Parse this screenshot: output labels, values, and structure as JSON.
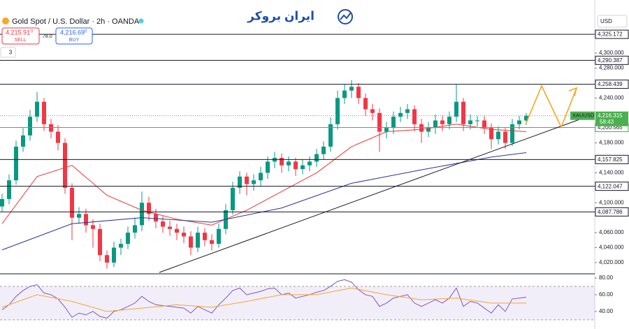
{
  "header": {
    "title": "Gold Spot / U.S. Dollar · 2h · OANDA",
    "sell_price": "4,215.91",
    "sell_sup": "0",
    "sell_label": "SELL",
    "spread": "78.0",
    "buy_price": "4,216.69",
    "buy_sup": "0",
    "buy_label": "BUY",
    "interval": "3",
    "logo": "ایران بروکر",
    "currency": "USD"
  },
  "chart_data": [
    {
      "type": "candlestick",
      "symbol": "XAUUSD",
      "up_color": "#089981",
      "down_color": "#f23645",
      "grid": false,
      "ylim": [
        4005,
        4329
      ],
      "yticks": [
        {
          "value": 4020,
          "label": "4,020.000"
        },
        {
          "value": 4040,
          "label": "4,040.000"
        },
        {
          "value": 4060,
          "label": "4,060.000"
        },
        {
          "value": 4100,
          "label": "4,100.000"
        },
        {
          "value": 4140,
          "label": "4,140.000"
        },
        {
          "value": 4180,
          "label": "4,180.000"
        },
        {
          "value": 4240,
          "label": "4,240.000"
        },
        {
          "value": 4280,
          "label": "4,280.000"
        },
        {
          "value": 4300,
          "label": "4,300.000"
        }
      ],
      "open": [
        4095,
        4105,
        4130,
        4175,
        4190,
        4215,
        4235,
        4205,
        4195,
        4180,
        4120,
        4080,
        4085,
        4070,
        4065,
        4030,
        4020,
        4040,
        4045,
        4060,
        4070,
        4100,
        4085,
        4075,
        4068,
        4065,
        4060,
        4055,
        4040,
        4060,
        4050,
        4045,
        4065,
        4090,
        4120,
        4135,
        4125,
        4130,
        4140,
        4155,
        4160,
        4150,
        4155,
        4145,
        4150,
        4155,
        4165,
        4175,
        4205,
        4240,
        4250,
        4255,
        4240,
        4225,
        4220,
        4195,
        4200,
        4215,
        4220,
        4225,
        4205,
        4195,
        4200,
        4210,
        4205,
        4215,
        4235,
        4205,
        4210,
        4210,
        4200,
        4185,
        4195,
        4180,
        4205,
        4210
      ],
      "high": [
        4112,
        4138,
        4183,
        4200,
        4224,
        4248,
        4240,
        4212,
        4204,
        4186,
        4126,
        4094,
        4092,
        4078,
        4072,
        4036,
        4048,
        4052,
        4068,
        4080,
        4115,
        4108,
        4092,
        4082,
        4076,
        4072,
        4068,
        4062,
        4068,
        4066,
        4058,
        4072,
        4098,
        4128,
        4142,
        4140,
        4138,
        4148,
        4162,
        4168,
        4166,
        4162,
        4160,
        4158,
        4162,
        4172,
        4182,
        4214,
        4250,
        4258,
        4264,
        4260,
        4246,
        4232,
        4226,
        4208,
        4222,
        4228,
        4232,
        4230,
        4212,
        4208,
        4218,
        4216,
        4222,
        4258,
        4240,
        4218,
        4216,
        4216,
        4206,
        4202,
        4200,
        4212,
        4216,
        4220
      ],
      "low": [
        4088,
        4098,
        4124,
        4168,
        4183,
        4208,
        4196,
        4186,
        4170,
        4112,
        4050,
        4072,
        4060,
        4040,
        4022,
        4012,
        4014,
        4030,
        4038,
        4052,
        4062,
        4076,
        4066,
        4060,
        4056,
        4050,
        4046,
        4030,
        4034,
        4042,
        4036,
        4040,
        4058,
        4084,
        4112,
        4110,
        4116,
        4122,
        4132,
        4146,
        4140,
        4142,
        4136,
        4138,
        4142,
        4148,
        4158,
        4168,
        4198,
        4232,
        4240,
        4232,
        4216,
        4210,
        4168,
        4186,
        4192,
        4208,
        4212,
        4196,
        4180,
        4188,
        4192,
        4196,
        4198,
        4208,
        4196,
        4198,
        4202,
        4192,
        4172,
        4178,
        4172,
        4176,
        4198,
        4204
      ],
      "close": [
        4105,
        4130,
        4175,
        4190,
        4215,
        4235,
        4205,
        4195,
        4180,
        4120,
        4080,
        4085,
        4070,
        4065,
        4030,
        4020,
        4040,
        4045,
        4060,
        4070,
        4100,
        4085,
        4075,
        4068,
        4065,
        4060,
        4055,
        4040,
        4060,
        4050,
        4045,
        4065,
        4090,
        4120,
        4135,
        4125,
        4130,
        4140,
        4155,
        4160,
        4150,
        4155,
        4145,
        4150,
        4155,
        4165,
        4175,
        4205,
        4240,
        4250,
        4255,
        4240,
        4225,
        4220,
        4195,
        4200,
        4215,
        4220,
        4225,
        4205,
        4195,
        4200,
        4210,
        4205,
        4215,
        4235,
        4205,
        4210,
        4210,
        4200,
        4185,
        4195,
        4180,
        4205,
        4210,
        4216.3
      ],
      "series": [
        {
          "color": "#e53935",
          "x": [
            0,
            5,
            10,
            15,
            20,
            25,
            30,
            35,
            40,
            45,
            50,
            55,
            60,
            65,
            70,
            75
          ],
          "values": [
            4072,
            4135,
            4150,
            4110,
            4090,
            4078,
            4070,
            4090,
            4115,
            4140,
            4175,
            4195,
            4198,
            4205,
            4198,
            4195
          ]
        },
        {
          "color": "#283593",
          "x": [
            0,
            10,
            20,
            30,
            40,
            50,
            60,
            70,
            75
          ],
          "values": [
            4037,
            4072,
            4080,
            4074,
            4093,
            4126,
            4144,
            4161,
            4167
          ]
        }
      ],
      "levels": [
        {
          "value": 4325.172,
          "label": "4,325.172",
          "color": "#131722"
        },
        {
          "value": 4290.387,
          "label": "4,290.387",
          "color": "#131722"
        },
        {
          "value": 4258.439,
          "label": "4,258.439",
          "color": "#131722"
        },
        {
          "value": 4200.565,
          "label": "4,200.565",
          "color": "#4caf50"
        },
        {
          "value": 4157.825,
          "label": "4,157.825",
          "color": "#131722"
        },
        {
          "value": 4122.047,
          "label": "4,122.047",
          "color": "#131722"
        },
        {
          "value": 4087.786,
          "label": "4,087.786",
          "color": "#131722"
        }
      ],
      "last_price": {
        "value": 4216.315,
        "label": "4,216.315"
      },
      "countdown": "58:43",
      "last_color": "#4caf50"
    },
    {
      "type": "line",
      "ylim": [
        19,
        85
      ],
      "band": [
        30,
        70
      ],
      "band_color": "#7e57c2",
      "yticks": [
        {
          "value": 80,
          "label": "80.00"
        },
        {
          "value": 60,
          "label": "60.00"
        },
        {
          "value": 40,
          "label": "40.00"
        }
      ],
      "series": [
        {
          "color": "#7e57c2",
          "values": [
            42,
            48,
            58,
            65,
            70,
            72,
            62,
            60,
            55,
            45,
            33,
            38,
            36,
            40,
            34,
            32,
            40,
            42,
            46,
            50,
            58,
            52,
            48,
            47,
            46,
            45,
            44,
            38,
            46,
            42,
            38,
            48,
            56,
            65,
            68,
            60,
            62,
            64,
            67,
            68,
            60,
            62,
            56,
            58,
            60,
            63,
            65,
            70,
            76,
            78,
            75,
            66,
            60,
            58,
            46,
            50,
            56,
            58,
            60,
            50,
            46,
            50,
            54,
            50,
            56,
            68,
            46,
            52,
            50,
            44,
            38,
            48,
            40,
            55,
            56,
            57
          ]
        },
        {
          "color": "#f0a830",
          "x": [
            0,
            5,
            10,
            15,
            20,
            25,
            30,
            35,
            40,
            45,
            50,
            55,
            60,
            65,
            70,
            75
          ],
          "values": [
            45,
            60,
            52,
            40,
            44,
            48,
            45,
            52,
            60,
            60,
            68,
            60,
            54,
            56,
            50,
            50
          ]
        }
      ]
    }
  ]
}
